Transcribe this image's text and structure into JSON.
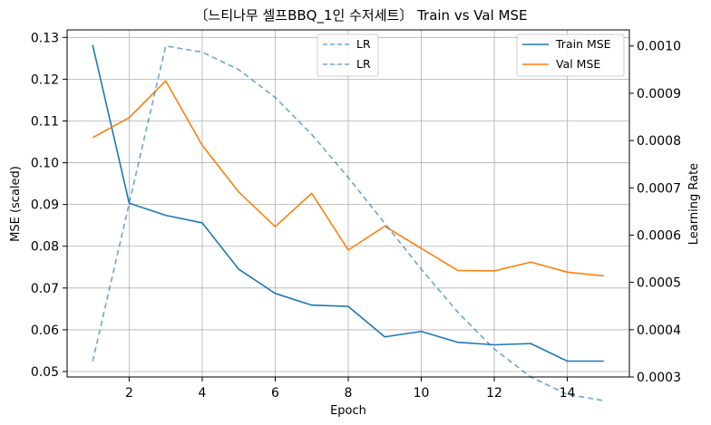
{
  "chart_data": {
    "type": "line",
    "title": "〔느티나무 셀프BBQ_1인 수저세트〕 Train vs Val MSE",
    "xlabel": "Epoch",
    "ylabel_left": "MSE (scaled)",
    "ylabel_right": "Learning Rate",
    "x": [
      1,
      2,
      3,
      4,
      5,
      6,
      7,
      8,
      9,
      10,
      11,
      12,
      13,
      14,
      15
    ],
    "xlim": [
      0.3,
      15.7
    ],
    "xticks": [
      2,
      4,
      6,
      8,
      10,
      12,
      14
    ],
    "ylim_left": [
      0.0487,
      0.1318
    ],
    "yticks_left": [
      "0.05",
      "0.06",
      "0.07",
      "0.08",
      "0.09",
      "0.10",
      "0.11",
      "0.12",
      "0.13"
    ],
    "ylim_right": [
      0.0003,
      0.001034
    ],
    "yticks_right": [
      "0.0003",
      "0.0004",
      "0.0005",
      "0.0006",
      "0.0007",
      "0.0008",
      "0.0009",
      "0.0010"
    ],
    "grid": true,
    "series": [
      {
        "name": "Train MSE",
        "axis": "left",
        "color": "#1f77b4",
        "style": "solid",
        "values": [
          0.1282,
          0.0903,
          0.0874,
          0.0856,
          0.0745,
          0.0687,
          0.0659,
          0.0656,
          0.0583,
          0.0596,
          0.057,
          0.0564,
          0.0567,
          0.0525,
          0.0525
        ]
      },
      {
        "name": "Val MSE",
        "axis": "left",
        "color": "#ff7f0e",
        "style": "solid",
        "values": [
          0.106,
          0.1108,
          0.1196,
          0.1042,
          0.093,
          0.0847,
          0.0927,
          0.0791,
          0.0848,
          0.0795,
          0.0742,
          0.0741,
          0.0762,
          0.0738,
          0.0729
        ]
      },
      {
        "name": "LR",
        "axis": "right",
        "color": "#1f77b4",
        "style": "dashed",
        "values": [
          0.000333,
          0.000667,
          0.001,
          0.000987,
          0.00095,
          0.000891,
          0.000813,
          0.000722,
          0.000625,
          0.000528,
          0.000437,
          0.000359,
          0.0003,
          0.000263,
          0.00025
        ]
      }
    ],
    "legend_left": {
      "placement": "top-center",
      "entries": [
        "LR",
        "LR"
      ]
    },
    "legend_right": {
      "placement": "top-right",
      "entries": [
        "Train MSE",
        "Val MSE"
      ]
    }
  }
}
